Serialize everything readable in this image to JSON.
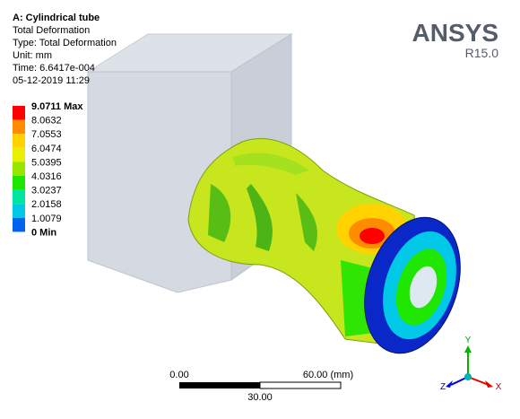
{
  "header": {
    "title": "A: Cylindrical tube",
    "lines": [
      "Total Deformation",
      "Type: Total Deformation",
      "Unit: mm",
      "Time: 6.6417e-004",
      "05-12-2019 11:29"
    ]
  },
  "logo": {
    "name": "ANSYS",
    "version": "R15.0"
  },
  "legend": {
    "labels": [
      "9.0711 Max",
      "8.0632",
      "7.0553",
      "6.0474",
      "5.0395",
      "4.0316",
      "3.0237",
      "2.0158",
      "1.0079",
      "0 Min"
    ],
    "colors": [
      "#ff0000",
      "#ff8c00",
      "#ffd200",
      "#e6f000",
      "#96e600",
      "#1ee600",
      "#00e6a0",
      "#00c8e6",
      "#0064f0"
    ]
  },
  "scale_bar": {
    "left": "0.00",
    "right": "60.00 (mm)",
    "middle": "30.00"
  },
  "triad": {
    "y": "Y",
    "z": "Z",
    "x": "X"
  }
}
